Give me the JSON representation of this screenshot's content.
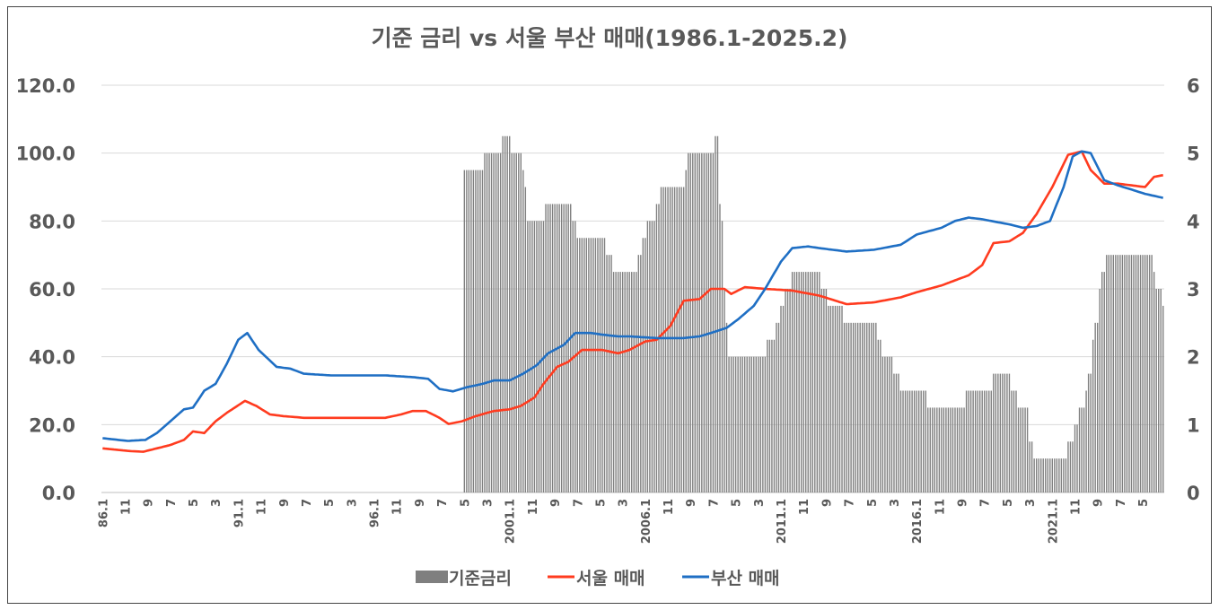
{
  "chart_data": {
    "type": "bar+line",
    "title": "기준 금리 vs 서울 부산 매매(1986.1-2025.2)",
    "x_start": "1986-01",
    "x_end": "2025-02",
    "x_tick_labels": [
      "86.1",
      "11",
      "9",
      "7",
      "5",
      "3",
      "91.1",
      "11",
      "9",
      "7",
      "5",
      "3",
      "96.1",
      "11",
      "9",
      "7",
      "5",
      "3",
      "2001.1",
      "11",
      "9",
      "7",
      "5",
      "3",
      "2006.1",
      "11",
      "9",
      "7",
      "5",
      "3",
      "2011.1",
      "11",
      "9",
      "7",
      "5",
      "3",
      "2016.1",
      "11",
      "9",
      "7",
      "5",
      "3",
      "2021.1",
      "11",
      "9",
      "7",
      "5"
    ],
    "y_left": {
      "min": 0,
      "max": 120,
      "ticks": [
        "0.0",
        "20.0",
        "40.0",
        "60.0",
        "80.0",
        "100.0",
        "120.0"
      ]
    },
    "y_right": {
      "min": 0,
      "max": 6,
      "ticks": [
        "0",
        "1",
        "2",
        "3",
        "4",
        "5",
        "6"
      ]
    },
    "grid": true,
    "legend_position": "bottom",
    "series": [
      {
        "name": "기준금리",
        "type": "bar",
        "axis": "right",
        "color": "#7f7f7f",
        "steps": [
          [
            "1999-05",
            4.75
          ],
          [
            "2000-02",
            5.0
          ],
          [
            "2000-10",
            5.25
          ],
          [
            "2001-02",
            5.0
          ],
          [
            "2001-07",
            4.75
          ],
          [
            "2001-08",
            4.5
          ],
          [
            "2001-09",
            4.0
          ],
          [
            "2002-05",
            4.25
          ],
          [
            "2003-05",
            4.0
          ],
          [
            "2003-07",
            3.75
          ],
          [
            "2004-08",
            3.5
          ],
          [
            "2004-11",
            3.25
          ],
          [
            "2005-10",
            3.5
          ],
          [
            "2005-12",
            3.75
          ],
          [
            "2006-02",
            4.0
          ],
          [
            "2006-06",
            4.25
          ],
          [
            "2006-08",
            4.5
          ],
          [
            "2007-07",
            4.75
          ],
          [
            "2007-08",
            5.0
          ],
          [
            "2008-08",
            5.25
          ],
          [
            "2008-10",
            4.25
          ],
          [
            "2008-11",
            4.0
          ],
          [
            "2008-12",
            3.0
          ],
          [
            "2009-01",
            2.5
          ],
          [
            "2009-02",
            2.0
          ],
          [
            "2010-07",
            2.25
          ],
          [
            "2010-11",
            2.5
          ],
          [
            "2011-01",
            2.75
          ],
          [
            "2011-03",
            3.0
          ],
          [
            "2011-06",
            3.25
          ],
          [
            "2012-07",
            3.0
          ],
          [
            "2012-10",
            2.75
          ],
          [
            "2013-05",
            2.5
          ],
          [
            "2014-08",
            2.25
          ],
          [
            "2014-10",
            2.0
          ],
          [
            "2015-03",
            1.75
          ],
          [
            "2015-06",
            1.5
          ],
          [
            "2016-06",
            1.25
          ],
          [
            "2017-11",
            1.5
          ],
          [
            "2018-11",
            1.75
          ],
          [
            "2019-07",
            1.5
          ],
          [
            "2019-10",
            1.25
          ],
          [
            "2020-03",
            0.75
          ],
          [
            "2020-05",
            0.5
          ],
          [
            "2021-08",
            0.75
          ],
          [
            "2021-11",
            1.0
          ],
          [
            "2022-01",
            1.25
          ],
          [
            "2022-04",
            1.5
          ],
          [
            "2022-05",
            1.75
          ],
          [
            "2022-07",
            2.25
          ],
          [
            "2022-08",
            2.5
          ],
          [
            "2022-10",
            3.0
          ],
          [
            "2022-11",
            3.25
          ],
          [
            "2023-01",
            3.5
          ],
          [
            "2024-10",
            3.25
          ],
          [
            "2024-11",
            3.0
          ],
          [
            "2025-02",
            2.75
          ]
        ]
      },
      {
        "name": "서울 매매",
        "type": "line",
        "axis": "left",
        "color": "#ff3b1f",
        "points": [
          [
            "1986-01",
            13.0
          ],
          [
            "1987-01",
            12.2
          ],
          [
            "1987-07",
            12.0
          ],
          [
            "1988-01",
            13.0
          ],
          [
            "1988-07",
            14.0
          ],
          [
            "1989-01",
            15.5
          ],
          [
            "1989-05",
            18.0
          ],
          [
            "1989-10",
            17.5
          ],
          [
            "1990-03",
            21.0
          ],
          [
            "1990-08",
            23.5
          ],
          [
            "1991-04",
            27.0
          ],
          [
            "1991-09",
            25.5
          ],
          [
            "1992-03",
            23.0
          ],
          [
            "1992-09",
            22.5
          ],
          [
            "1993-06",
            22.0
          ],
          [
            "1994-06",
            22.0
          ],
          [
            "1995-06",
            22.0
          ],
          [
            "1996-06",
            22.0
          ],
          [
            "1997-01",
            23.0
          ],
          [
            "1997-06",
            24.0
          ],
          [
            "1997-12",
            24.0
          ],
          [
            "1998-06",
            22.0
          ],
          [
            "1998-10",
            20.2
          ],
          [
            "1999-04",
            21.0
          ],
          [
            "1999-10",
            22.5
          ],
          [
            "2000-06",
            24.0
          ],
          [
            "2001-01",
            24.5
          ],
          [
            "2001-06",
            25.5
          ],
          [
            "2001-12",
            28.0
          ],
          [
            "2002-04",
            32.0
          ],
          [
            "2002-10",
            37.0
          ],
          [
            "2003-03",
            38.5
          ],
          [
            "2003-09",
            42.0
          ],
          [
            "2004-06",
            42.0
          ],
          [
            "2005-01",
            41.0
          ],
          [
            "2005-06",
            42.0
          ],
          [
            "2006-01",
            44.5
          ],
          [
            "2006-06",
            45.0
          ],
          [
            "2006-12",
            49.0
          ],
          [
            "2007-06",
            56.5
          ],
          [
            "2008-01",
            57.0
          ],
          [
            "2008-06",
            60.0
          ],
          [
            "2008-12",
            60.0
          ],
          [
            "2009-03",
            58.5
          ],
          [
            "2009-09",
            60.5
          ],
          [
            "2010-06",
            60.0
          ],
          [
            "2011-06",
            59.5
          ],
          [
            "2012-06",
            58.0
          ],
          [
            "2013-06",
            55.5
          ],
          [
            "2014-06",
            56.0
          ],
          [
            "2015-06",
            57.5
          ],
          [
            "2016-01",
            59.0
          ],
          [
            "2016-12",
            61.0
          ],
          [
            "2017-12",
            64.0
          ],
          [
            "2018-06",
            67.0
          ],
          [
            "2018-11",
            73.5
          ],
          [
            "2019-06",
            74.0
          ],
          [
            "2019-12",
            76.5
          ],
          [
            "2020-06",
            82.0
          ],
          [
            "2021-01",
            90.0
          ],
          [
            "2021-08",
            99.5
          ],
          [
            "2022-02",
            100.5
          ],
          [
            "2022-06",
            95.0
          ],
          [
            "2022-12",
            91.0
          ],
          [
            "2023-06",
            91.0
          ],
          [
            "2024-06",
            90.0
          ],
          [
            "2024-10",
            93.0
          ],
          [
            "2025-02",
            93.5
          ]
        ]
      },
      {
        "name": "부산 매매",
        "type": "line",
        "axis": "left",
        "color": "#1f6fc4",
        "points": [
          [
            "1986-01",
            16.0
          ],
          [
            "1986-12",
            15.2
          ],
          [
            "1987-08",
            15.5
          ],
          [
            "1988-01",
            17.5
          ],
          [
            "1988-07",
            21.0
          ],
          [
            "1989-01",
            24.5
          ],
          [
            "1989-05",
            25.0
          ],
          [
            "1989-10",
            30.0
          ],
          [
            "1990-03",
            32.0
          ],
          [
            "1990-08",
            38.0
          ],
          [
            "1991-01",
            45.0
          ],
          [
            "1991-05",
            47.0
          ],
          [
            "1991-10",
            42.0
          ],
          [
            "1992-06",
            37.0
          ],
          [
            "1992-12",
            36.5
          ],
          [
            "1993-06",
            35.0
          ],
          [
            "1994-06",
            34.5
          ],
          [
            "1995-06",
            34.5
          ],
          [
            "1996-06",
            34.5
          ],
          [
            "1997-06",
            34.0
          ],
          [
            "1998-01",
            33.5
          ],
          [
            "1998-06",
            30.5
          ],
          [
            "1998-12",
            29.8
          ],
          [
            "1999-06",
            31.0
          ],
          [
            "2000-01",
            32.0
          ],
          [
            "2000-06",
            33.0
          ],
          [
            "2001-01",
            33.0
          ],
          [
            "2001-07",
            35.0
          ],
          [
            "2002-01",
            37.5
          ],
          [
            "2002-06",
            41.0
          ],
          [
            "2003-01",
            43.5
          ],
          [
            "2003-06",
            47.0
          ],
          [
            "2004-01",
            47.0
          ],
          [
            "2004-06",
            46.5
          ],
          [
            "2005-01",
            46.0
          ],
          [
            "2005-06",
            46.0
          ],
          [
            "2006-06",
            45.5
          ],
          [
            "2007-06",
            45.5
          ],
          [
            "2008-01",
            46.0
          ],
          [
            "2008-06",
            47.0
          ],
          [
            "2009-01",
            48.5
          ],
          [
            "2009-06",
            51.0
          ],
          [
            "2010-01",
            55.0
          ],
          [
            "2010-06",
            60.0
          ],
          [
            "2011-01",
            68.0
          ],
          [
            "2011-06",
            72.0
          ],
          [
            "2012-01",
            72.5
          ],
          [
            "2012-06",
            72.0
          ],
          [
            "2013-06",
            71.0
          ],
          [
            "2014-06",
            71.5
          ],
          [
            "2015-06",
            73.0
          ],
          [
            "2016-01",
            76.0
          ],
          [
            "2016-12",
            78.0
          ],
          [
            "2017-06",
            80.0
          ],
          [
            "2017-12",
            81.0
          ],
          [
            "2018-06",
            80.5
          ],
          [
            "2019-06",
            79.0
          ],
          [
            "2019-12",
            78.0
          ],
          [
            "2020-06",
            78.5
          ],
          [
            "2020-12",
            80.0
          ],
          [
            "2021-06",
            90.0
          ],
          [
            "2021-10",
            99.0
          ],
          [
            "2022-02",
            100.5
          ],
          [
            "2022-06",
            100.0
          ],
          [
            "2022-12",
            92.0
          ],
          [
            "2023-06",
            90.5
          ],
          [
            "2024-06",
            88.0
          ],
          [
            "2025-02",
            86.8
          ]
        ]
      }
    ]
  }
}
